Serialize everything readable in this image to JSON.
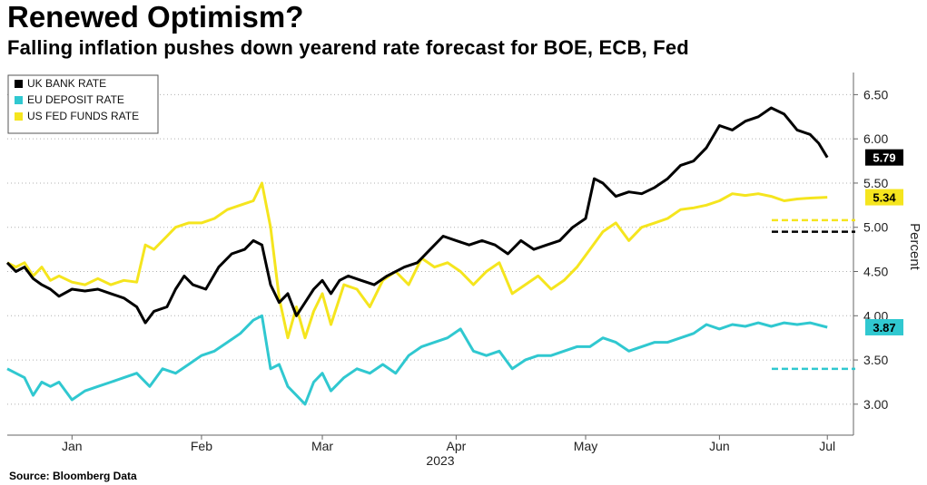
{
  "title": "Renewed Optimism?",
  "subtitle": "Falling inflation pushes down yearend rate forecast for BOE, ECB, Fed",
  "source": "Source: Bloomberg Data",
  "chart_data": {
    "type": "line",
    "ylabel": "Percent",
    "xlabel": "",
    "year_label": "2023",
    "ylim": [
      2.65,
      6.75
    ],
    "yticks": [
      "3.00",
      "3.50",
      "4.00",
      "4.50",
      "5.00",
      "5.50",
      "6.00",
      "6.50"
    ],
    "ytick_values": [
      3.0,
      3.5,
      4.0,
      4.5,
      5.0,
      5.5,
      6.0,
      6.5
    ],
    "xlim": [
      "2023-01-01",
      "2023-07-15"
    ],
    "month_ticks": [
      {
        "label": "Jan",
        "date": "2023-01-16"
      },
      {
        "label": "Feb",
        "date": "2023-02-15"
      },
      {
        "label": "Mar",
        "date": "2023-03-15"
      },
      {
        "label": "Apr",
        "date": "2023-04-15"
      },
      {
        "label": "May",
        "date": "2023-05-15"
      },
      {
        "label": "Jun",
        "date": "2023-06-15"
      },
      {
        "label": "Jul",
        "date": "2023-07-10"
      }
    ],
    "grid": "horizontal dotted",
    "legend_position": "top-left",
    "series": [
      {
        "name": "UK BANK RATE",
        "color": "#000000",
        "end_label": "5.79",
        "label_text_color": "#ffffff",
        "forecast": 4.95,
        "points": [
          [
            "2023-01-01",
            4.6
          ],
          [
            "2023-01-03",
            4.5
          ],
          [
            "2023-01-05",
            4.55
          ],
          [
            "2023-01-07",
            4.42
          ],
          [
            "2023-01-09",
            4.35
          ],
          [
            "2023-01-11",
            4.3
          ],
          [
            "2023-01-13",
            4.22
          ],
          [
            "2023-01-16",
            4.3
          ],
          [
            "2023-01-19",
            4.28
          ],
          [
            "2023-01-22",
            4.3
          ],
          [
            "2023-01-25",
            4.25
          ],
          [
            "2023-01-28",
            4.2
          ],
          [
            "2023-01-31",
            4.1
          ],
          [
            "2023-02-02",
            3.92
          ],
          [
            "2023-02-04",
            4.05
          ],
          [
            "2023-02-07",
            4.1
          ],
          [
            "2023-02-09",
            4.3
          ],
          [
            "2023-02-11",
            4.45
          ],
          [
            "2023-02-13",
            4.35
          ],
          [
            "2023-02-16",
            4.3
          ],
          [
            "2023-02-19",
            4.55
          ],
          [
            "2023-02-22",
            4.7
          ],
          [
            "2023-02-25",
            4.75
          ],
          [
            "2023-02-27",
            4.85
          ],
          [
            "2023-03-01",
            4.8
          ],
          [
            "2023-03-03",
            4.35
          ],
          [
            "2023-03-05",
            4.15
          ],
          [
            "2023-03-07",
            4.25
          ],
          [
            "2023-03-09",
            4.0
          ],
          [
            "2023-03-11",
            4.15
          ],
          [
            "2023-03-13",
            4.3
          ],
          [
            "2023-03-15",
            4.4
          ],
          [
            "2023-03-17",
            4.25
          ],
          [
            "2023-03-19",
            4.4
          ],
          [
            "2023-03-21",
            4.45
          ],
          [
            "2023-03-24",
            4.4
          ],
          [
            "2023-03-27",
            4.35
          ],
          [
            "2023-03-30",
            4.45
          ],
          [
            "2023-04-03",
            4.55
          ],
          [
            "2023-04-06",
            4.6
          ],
          [
            "2023-04-09",
            4.75
          ],
          [
            "2023-04-12",
            4.9
          ],
          [
            "2023-04-15",
            4.85
          ],
          [
            "2023-04-18",
            4.8
          ],
          [
            "2023-04-21",
            4.85
          ],
          [
            "2023-04-24",
            4.8
          ],
          [
            "2023-04-27",
            4.7
          ],
          [
            "2023-04-30",
            4.85
          ],
          [
            "2023-05-03",
            4.75
          ],
          [
            "2023-05-06",
            4.8
          ],
          [
            "2023-05-09",
            4.85
          ],
          [
            "2023-05-12",
            5.0
          ],
          [
            "2023-05-15",
            5.1
          ],
          [
            "2023-05-17",
            5.55
          ],
          [
            "2023-05-19",
            5.5
          ],
          [
            "2023-05-22",
            5.35
          ],
          [
            "2023-05-25",
            5.4
          ],
          [
            "2023-05-28",
            5.38
          ],
          [
            "2023-05-31",
            5.45
          ],
          [
            "2023-06-03",
            5.55
          ],
          [
            "2023-06-06",
            5.7
          ],
          [
            "2023-06-09",
            5.75
          ],
          [
            "2023-06-12",
            5.9
          ],
          [
            "2023-06-15",
            6.15
          ],
          [
            "2023-06-18",
            6.1
          ],
          [
            "2023-06-21",
            6.2
          ],
          [
            "2023-06-24",
            6.25
          ],
          [
            "2023-06-27",
            6.35
          ],
          [
            "2023-06-30",
            6.28
          ],
          [
            "2023-07-03",
            6.1
          ],
          [
            "2023-07-06",
            6.05
          ],
          [
            "2023-07-08",
            5.95
          ],
          [
            "2023-07-10",
            5.79
          ]
        ]
      },
      {
        "name": "EU DEPOSIT RATE",
        "color": "#30c8d0",
        "end_label": "3.87",
        "label_text_color": "#000000",
        "forecast": 3.4,
        "points": [
          [
            "2023-01-01",
            3.4
          ],
          [
            "2023-01-03",
            3.35
          ],
          [
            "2023-01-05",
            3.3
          ],
          [
            "2023-01-07",
            3.1
          ],
          [
            "2023-01-09",
            3.25
          ],
          [
            "2023-01-11",
            3.2
          ],
          [
            "2023-01-13",
            3.25
          ],
          [
            "2023-01-16",
            3.05
          ],
          [
            "2023-01-19",
            3.15
          ],
          [
            "2023-01-22",
            3.2
          ],
          [
            "2023-01-25",
            3.25
          ],
          [
            "2023-01-28",
            3.3
          ],
          [
            "2023-01-31",
            3.35
          ],
          [
            "2023-02-03",
            3.2
          ],
          [
            "2023-02-06",
            3.4
          ],
          [
            "2023-02-09",
            3.35
          ],
          [
            "2023-02-12",
            3.45
          ],
          [
            "2023-02-15",
            3.55
          ],
          [
            "2023-02-18",
            3.6
          ],
          [
            "2023-02-21",
            3.7
          ],
          [
            "2023-02-24",
            3.8
          ],
          [
            "2023-02-27",
            3.95
          ],
          [
            "2023-03-01",
            4.0
          ],
          [
            "2023-03-03",
            3.4
          ],
          [
            "2023-03-05",
            3.45
          ],
          [
            "2023-03-07",
            3.2
          ],
          [
            "2023-03-09",
            3.1
          ],
          [
            "2023-03-11",
            3.0
          ],
          [
            "2023-03-13",
            3.25
          ],
          [
            "2023-03-15",
            3.35
          ],
          [
            "2023-03-17",
            3.15
          ],
          [
            "2023-03-20",
            3.3
          ],
          [
            "2023-03-23",
            3.4
          ],
          [
            "2023-03-26",
            3.35
          ],
          [
            "2023-03-29",
            3.45
          ],
          [
            "2023-04-01",
            3.35
          ],
          [
            "2023-04-04",
            3.55
          ],
          [
            "2023-04-07",
            3.65
          ],
          [
            "2023-04-10",
            3.7
          ],
          [
            "2023-04-13",
            3.75
          ],
          [
            "2023-04-16",
            3.85
          ],
          [
            "2023-04-19",
            3.6
          ],
          [
            "2023-04-22",
            3.55
          ],
          [
            "2023-04-25",
            3.6
          ],
          [
            "2023-04-28",
            3.4
          ],
          [
            "2023-05-01",
            3.5
          ],
          [
            "2023-05-04",
            3.55
          ],
          [
            "2023-05-07",
            3.55
          ],
          [
            "2023-05-10",
            3.6
          ],
          [
            "2023-05-13",
            3.65
          ],
          [
            "2023-05-16",
            3.65
          ],
          [
            "2023-05-19",
            3.75
          ],
          [
            "2023-05-22",
            3.7
          ],
          [
            "2023-05-25",
            3.6
          ],
          [
            "2023-05-28",
            3.65
          ],
          [
            "2023-05-31",
            3.7
          ],
          [
            "2023-06-03",
            3.7
          ],
          [
            "2023-06-06",
            3.75
          ],
          [
            "2023-06-09",
            3.8
          ],
          [
            "2023-06-12",
            3.9
          ],
          [
            "2023-06-15",
            3.85
          ],
          [
            "2023-06-18",
            3.9
          ],
          [
            "2023-06-21",
            3.88
          ],
          [
            "2023-06-24",
            3.92
          ],
          [
            "2023-06-27",
            3.88
          ],
          [
            "2023-06-30",
            3.92
          ],
          [
            "2023-07-03",
            3.9
          ],
          [
            "2023-07-06",
            3.92
          ],
          [
            "2023-07-10",
            3.87
          ]
        ]
      },
      {
        "name": "US FED FUNDS RATE",
        "color": "#f5e51e",
        "end_label": "5.34",
        "label_text_color": "#000000",
        "forecast": 5.08,
        "points": [
          [
            "2023-01-01",
            4.6
          ],
          [
            "2023-01-03",
            4.55
          ],
          [
            "2023-01-05",
            4.6
          ],
          [
            "2023-01-07",
            4.45
          ],
          [
            "2023-01-09",
            4.55
          ],
          [
            "2023-01-11",
            4.4
          ],
          [
            "2023-01-13",
            4.45
          ],
          [
            "2023-01-16",
            4.38
          ],
          [
            "2023-01-19",
            4.35
          ],
          [
            "2023-01-22",
            4.42
          ],
          [
            "2023-01-25",
            4.35
          ],
          [
            "2023-01-28",
            4.4
          ],
          [
            "2023-01-31",
            4.38
          ],
          [
            "2023-02-02",
            4.8
          ],
          [
            "2023-02-04",
            4.75
          ],
          [
            "2023-02-07",
            4.9
          ],
          [
            "2023-02-09",
            5.0
          ],
          [
            "2023-02-12",
            5.05
          ],
          [
            "2023-02-15",
            5.05
          ],
          [
            "2023-02-18",
            5.1
          ],
          [
            "2023-02-21",
            5.2
          ],
          [
            "2023-02-24",
            5.25
          ],
          [
            "2023-02-27",
            5.3
          ],
          [
            "2023-03-01",
            5.5
          ],
          [
            "2023-03-03",
            5.0
          ],
          [
            "2023-03-05",
            4.2
          ],
          [
            "2023-03-07",
            3.75
          ],
          [
            "2023-03-09",
            4.1
          ],
          [
            "2023-03-11",
            3.75
          ],
          [
            "2023-03-13",
            4.05
          ],
          [
            "2023-03-15",
            4.25
          ],
          [
            "2023-03-17",
            3.9
          ],
          [
            "2023-03-20",
            4.35
          ],
          [
            "2023-03-23",
            4.3
          ],
          [
            "2023-03-26",
            4.1
          ],
          [
            "2023-03-29",
            4.4
          ],
          [
            "2023-04-01",
            4.5
          ],
          [
            "2023-04-04",
            4.35
          ],
          [
            "2023-04-07",
            4.65
          ],
          [
            "2023-04-10",
            4.55
          ],
          [
            "2023-04-13",
            4.6
          ],
          [
            "2023-04-16",
            4.5
          ],
          [
            "2023-04-19",
            4.35
          ],
          [
            "2023-04-22",
            4.5
          ],
          [
            "2023-04-25",
            4.6
          ],
          [
            "2023-04-28",
            4.25
          ],
          [
            "2023-05-01",
            4.35
          ],
          [
            "2023-05-04",
            4.45
          ],
          [
            "2023-05-07",
            4.3
          ],
          [
            "2023-05-10",
            4.4
          ],
          [
            "2023-05-13",
            4.55
          ],
          [
            "2023-05-16",
            4.75
          ],
          [
            "2023-05-19",
            4.95
          ],
          [
            "2023-05-22",
            5.05
          ],
          [
            "2023-05-25",
            4.85
          ],
          [
            "2023-05-28",
            5.0
          ],
          [
            "2023-05-31",
            5.05
          ],
          [
            "2023-06-03",
            5.1
          ],
          [
            "2023-06-06",
            5.2
          ],
          [
            "2023-06-09",
            5.22
          ],
          [
            "2023-06-12",
            5.25
          ],
          [
            "2023-06-15",
            5.3
          ],
          [
            "2023-06-18",
            5.38
          ],
          [
            "2023-06-21",
            5.36
          ],
          [
            "2023-06-24",
            5.38
          ],
          [
            "2023-06-27",
            5.35
          ],
          [
            "2023-06-30",
            5.3
          ],
          [
            "2023-07-03",
            5.32
          ],
          [
            "2023-07-06",
            5.33
          ],
          [
            "2023-07-10",
            5.34
          ]
        ]
      }
    ]
  }
}
